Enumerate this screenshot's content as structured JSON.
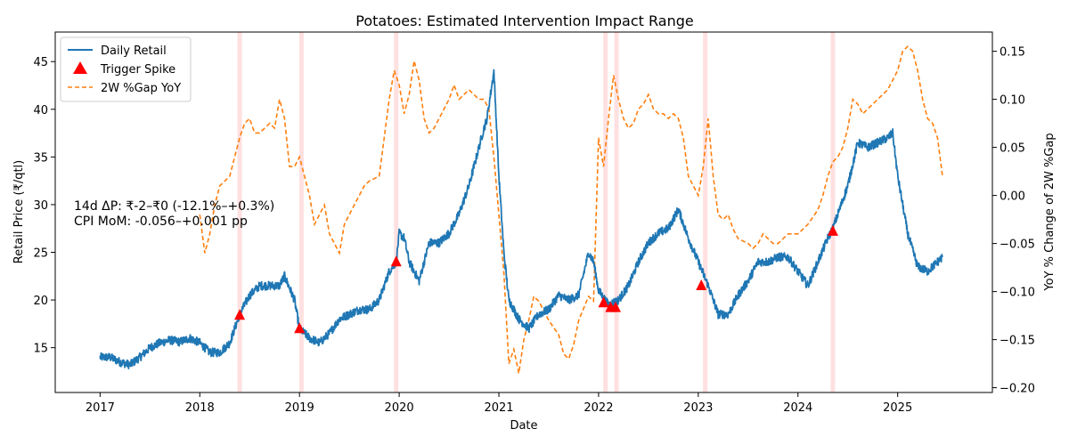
{
  "chart_data": {
    "type": "line",
    "title": "Potatoes: Estimated Intervention Impact Range",
    "xlabel": "Date",
    "ylabel": "Retail Price (₹/qtl)",
    "y2label": "YoY % Change of 2W %Gap",
    "xlim": [
      2016.55,
      2025.95
    ],
    "ylim": [
      10.3,
      48.1
    ],
    "y2lim": [
      -0.205,
      0.17
    ],
    "x_ticks": [
      2017,
      2018,
      2019,
      2020,
      2021,
      2022,
      2023,
      2024,
      2025
    ],
    "x_tick_labels": [
      "2017",
      "2018",
      "2019",
      "2020",
      "2021",
      "2022",
      "2023",
      "2024",
      "2025"
    ],
    "y_ticks": [
      15,
      20,
      25,
      30,
      35,
      40,
      45
    ],
    "y_tick_labels": [
      "15",
      "20",
      "25",
      "30",
      "35",
      "40",
      "45"
    ],
    "y2_ticks": [
      -0.2,
      -0.15,
      -0.1,
      -0.05,
      0.0,
      0.05,
      0.1,
      0.15
    ],
    "y2_tick_labels": [
      "−0.20",
      "−0.15",
      "−0.10",
      "−0.05",
      "0.00",
      "0.05",
      "0.10",
      "0.15"
    ],
    "legend_position": "top-left",
    "legend": [
      {
        "label": "Daily Retail",
        "kind": "line",
        "color": "#1f77b4"
      },
      {
        "label": "Trigger Spike",
        "kind": "triangle",
        "color": "#ff0000"
      },
      {
        "label": "2W %Gap YoY",
        "kind": "dashed",
        "color": "#ff7f0e"
      }
    ],
    "annotation": [
      "14d ΔP: ₹-2–₹0 (-12.1%–+0.3%)",
      "CPI MoM: -0.056–+0.001 pp"
    ],
    "shaded_periods": [
      2018.4,
      2019.02,
      2019.97,
      2022.07,
      2022.18,
      2023.07,
      2024.35
    ],
    "series": [
      {
        "name": "Daily Retail",
        "color": "#1f77b4",
        "axis": "left",
        "x": [
          2017.0,
          2017.1,
          2017.2,
          2017.3,
          2017.4,
          2017.5,
          2017.6,
          2017.7,
          2017.8,
          2017.9,
          2018.0,
          2018.1,
          2018.2,
          2018.3,
          2018.4,
          2018.5,
          2018.6,
          2018.7,
          2018.8,
          2018.85,
          2018.95,
          2019.0,
          2019.1,
          2019.2,
          2019.3,
          2019.4,
          2019.5,
          2019.6,
          2019.7,
          2019.8,
          2019.9,
          2019.97,
          2020.0,
          2020.05,
          2020.1,
          2020.2,
          2020.3,
          2020.4,
          2020.5,
          2020.6,
          2020.7,
          2020.8,
          2020.85,
          2020.88,
          2020.95,
          2021.0,
          2021.05,
          2021.1,
          2021.2,
          2021.3,
          2021.4,
          2021.5,
          2021.6,
          2021.7,
          2021.8,
          2021.9,
          2021.95,
          2022.0,
          2022.1,
          2022.2,
          2022.3,
          2022.4,
          2022.5,
          2022.6,
          2022.7,
          2022.8,
          2022.85,
          2022.9,
          2023.0,
          2023.1,
          2023.2,
          2023.3,
          2023.4,
          2023.5,
          2023.6,
          2023.7,
          2023.8,
          2023.9,
          2024.0,
          2024.1,
          2024.2,
          2024.3,
          2024.35,
          2024.4,
          2024.5,
          2024.6,
          2024.7,
          2024.8,
          2024.9,
          2024.95,
          2025.0,
          2025.1,
          2025.2,
          2025.3,
          2025.4,
          2025.45
        ],
        "values": [
          14.0,
          14.0,
          13.5,
          13.2,
          14.0,
          15.0,
          15.5,
          15.8,
          15.6,
          16.0,
          15.5,
          14.5,
          14.5,
          15.5,
          18.5,
          20.5,
          21.5,
          21.5,
          21.5,
          22.5,
          20.0,
          17.0,
          16.0,
          15.5,
          16.5,
          18.0,
          18.5,
          19.0,
          19.0,
          20.0,
          23.0,
          24.0,
          27.0,
          26.5,
          24.0,
          22.0,
          26.0,
          26.0,
          27.0,
          29.0,
          32.0,
          36.0,
          38.0,
          39.0,
          44.0,
          33.0,
          25.0,
          20.0,
          18.0,
          17.0,
          18.5,
          19.0,
          20.5,
          20.0,
          20.5,
          25.0,
          24.0,
          21.0,
          19.5,
          20.0,
          21.5,
          24.0,
          26.0,
          27.0,
          27.5,
          29.5,
          28.0,
          26.5,
          24.0,
          21.5,
          18.5,
          18.5,
          20.5,
          22.0,
          24.0,
          24.0,
          24.5,
          24.5,
          23.0,
          21.5,
          24.0,
          26.5,
          27.5,
          29.0,
          32.0,
          36.5,
          36.0,
          36.5,
          37.0,
          37.5,
          33.0,
          27.0,
          23.5,
          23.0,
          24.0,
          24.5
        ]
      },
      {
        "name": "2W %Gap YoY",
        "color": "#ff7f0e",
        "axis": "right",
        "x": [
          2018.0,
          2018.05,
          2018.1,
          2018.15,
          2018.2,
          2018.3,
          2018.4,
          2018.45,
          2018.5,
          2018.55,
          2018.6,
          2018.7,
          2018.75,
          2018.8,
          2018.85,
          2018.9,
          2018.95,
          2019.0,
          2019.05,
          2019.1,
          2019.15,
          2019.2,
          2019.25,
          2019.3,
          2019.35,
          2019.4,
          2019.45,
          2019.5,
          2019.55,
          2019.6,
          2019.65,
          2019.7,
          2019.8,
          2019.85,
          2019.9,
          2019.95,
          2020.0,
          2020.05,
          2020.1,
          2020.15,
          2020.2,
          2020.25,
          2020.3,
          2020.35,
          2020.4,
          2020.5,
          2020.55,
          2020.6,
          2020.65,
          2020.7,
          2020.75,
          2020.8,
          2020.85,
          2020.9,
          2020.95,
          2021.0,
          2021.05,
          2021.1,
          2021.15,
          2021.2,
          2021.25,
          2021.3,
          2021.35,
          2021.4,
          2021.5,
          2021.6,
          2021.65,
          2021.7,
          2021.75,
          2021.8,
          2021.9,
          2021.95,
          2022.0,
          2022.05,
          2022.1,
          2022.15,
          2022.2,
          2022.25,
          2022.3,
          2022.35,
          2022.4,
          2022.45,
          2022.5,
          2022.55,
          2022.6,
          2022.65,
          2022.7,
          2022.75,
          2022.8,
          2022.85,
          2022.9,
          2022.95,
          2023.0,
          2023.05,
          2023.1,
          2023.15,
          2023.2,
          2023.25,
          2023.3,
          2023.35,
          2023.4,
          2023.5,
          2023.55,
          2023.6,
          2023.65,
          2023.7,
          2023.75,
          2023.8,
          2023.85,
          2023.9,
          2024.0,
          2024.1,
          2024.2,
          2024.25,
          2024.3,
          2024.35,
          2024.4,
          2024.45,
          2024.5,
          2024.55,
          2024.6,
          2024.65,
          2024.7,
          2024.75,
          2024.8,
          2024.85,
          2024.9,
          2024.95,
          2025.0,
          2025.05,
          2025.1,
          2025.15,
          2025.2,
          2025.25,
          2025.3,
          2025.35,
          2025.4,
          2025.45
        ],
        "values": [
          -0.02,
          -0.06,
          -0.04,
          -0.01,
          0.01,
          0.02,
          0.06,
          0.075,
          0.08,
          0.065,
          0.065,
          0.075,
          0.07,
          0.1,
          0.08,
          0.03,
          0.03,
          0.04,
          0.02,
          0.0,
          -0.03,
          -0.02,
          -0.01,
          -0.04,
          -0.05,
          -0.06,
          -0.03,
          -0.02,
          -0.01,
          0.0,
          0.01,
          0.015,
          0.02,
          0.06,
          0.1,
          0.13,
          0.115,
          0.085,
          0.105,
          0.14,
          0.12,
          0.08,
          0.065,
          0.07,
          0.08,
          0.1,
          0.115,
          0.1,
          0.105,
          0.11,
          0.105,
          0.1,
          0.1,
          0.09,
          0.04,
          -0.02,
          -0.08,
          -0.175,
          -0.16,
          -0.185,
          -0.15,
          -0.13,
          -0.105,
          -0.11,
          -0.13,
          -0.145,
          -0.165,
          -0.17,
          -0.155,
          -0.13,
          -0.105,
          -0.11,
          0.06,
          0.03,
          0.08,
          0.125,
          0.1,
          0.08,
          0.07,
          0.075,
          0.09,
          0.095,
          0.105,
          0.09,
          0.085,
          0.085,
          0.08,
          0.085,
          0.08,
          0.06,
          0.02,
          0.01,
          0.0,
          0.03,
          0.08,
          0.02,
          -0.02,
          -0.025,
          -0.02,
          -0.035,
          -0.045,
          -0.05,
          -0.055,
          -0.05,
          -0.04,
          -0.045,
          -0.05,
          -0.05,
          -0.045,
          -0.04,
          -0.04,
          -0.03,
          -0.015,
          0.0,
          0.02,
          0.035,
          0.04,
          0.05,
          0.07,
          0.1,
          0.095,
          0.085,
          0.09,
          0.095,
          0.1,
          0.105,
          0.11,
          0.12,
          0.13,
          0.15,
          0.155,
          0.15,
          0.13,
          0.1,
          0.08,
          0.075,
          0.06,
          0.02
        ]
      },
      {
        "name": "Trigger Spike",
        "color": "#ff0000",
        "axis": "left",
        "kind": "markers",
        "x": [
          2018.4,
          2019.0,
          2019.97,
          2022.05,
          2022.12,
          2022.17,
          2023.03,
          2024.35
        ],
        "values": [
          18.4,
          17.0,
          24.0,
          19.7,
          19.2,
          19.2,
          21.5,
          27.2
        ]
      }
    ]
  }
}
